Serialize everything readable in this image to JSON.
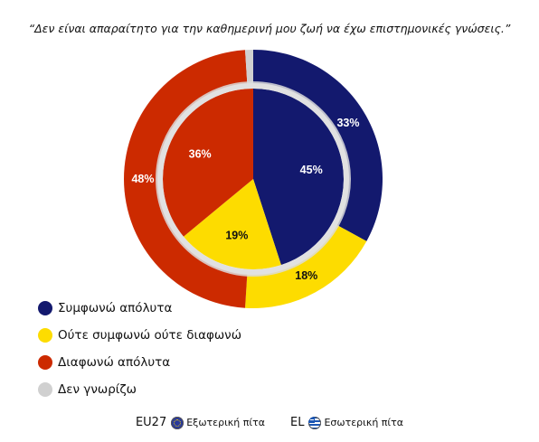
{
  "title": "“Δεν είναι απαραίτητο για την καθημερινή μου ζωή να έχω επιστημονικές γνώσεις.”",
  "chart_data": {
    "type": "donut",
    "categories": [
      "Συμφωνώ απόλυτα",
      "Ούτε συμφωνώ ούτε διαφωνώ",
      "Διαφωνώ απόλυτα",
      "Δεν γνωρίζω"
    ],
    "colors": [
      "#13196e",
      "#fddc00",
      "#cc2a00",
      "#d0d0d0"
    ],
    "series": [
      {
        "name": "EU27",
        "ring": "outer",
        "values": [
          33,
          18,
          48,
          1
        ],
        "labels": [
          "33%",
          "18%",
          "48%",
          ""
        ]
      },
      {
        "name": "EL",
        "ring": "inner",
        "values": [
          45,
          19,
          36,
          0
        ],
        "labels": [
          "45%",
          "19%",
          "36%",
          ""
        ]
      }
    ],
    "legend_position": "bottom-left"
  },
  "legend": {
    "items": [
      {
        "label": "Συμφωνώ απόλυτα",
        "color": "#13196e"
      },
      {
        "label": "Ούτε συμφωνώ ούτε διαφωνώ",
        "color": "#fddc00"
      },
      {
        "label": "Διαφωνώ απόλυτα",
        "color": "#cc2a00"
      },
      {
        "label": "Δεν γνωρίζω",
        "color": "#d0d0d0"
      }
    ]
  },
  "footer": {
    "outer": {
      "code": "EU27",
      "desc": "Εξωτερική πίτα",
      "icon": "eu-flag-icon"
    },
    "inner": {
      "code": "EL",
      "desc": "Εσωτερική πίτα",
      "icon": "greek-flag-icon"
    }
  }
}
